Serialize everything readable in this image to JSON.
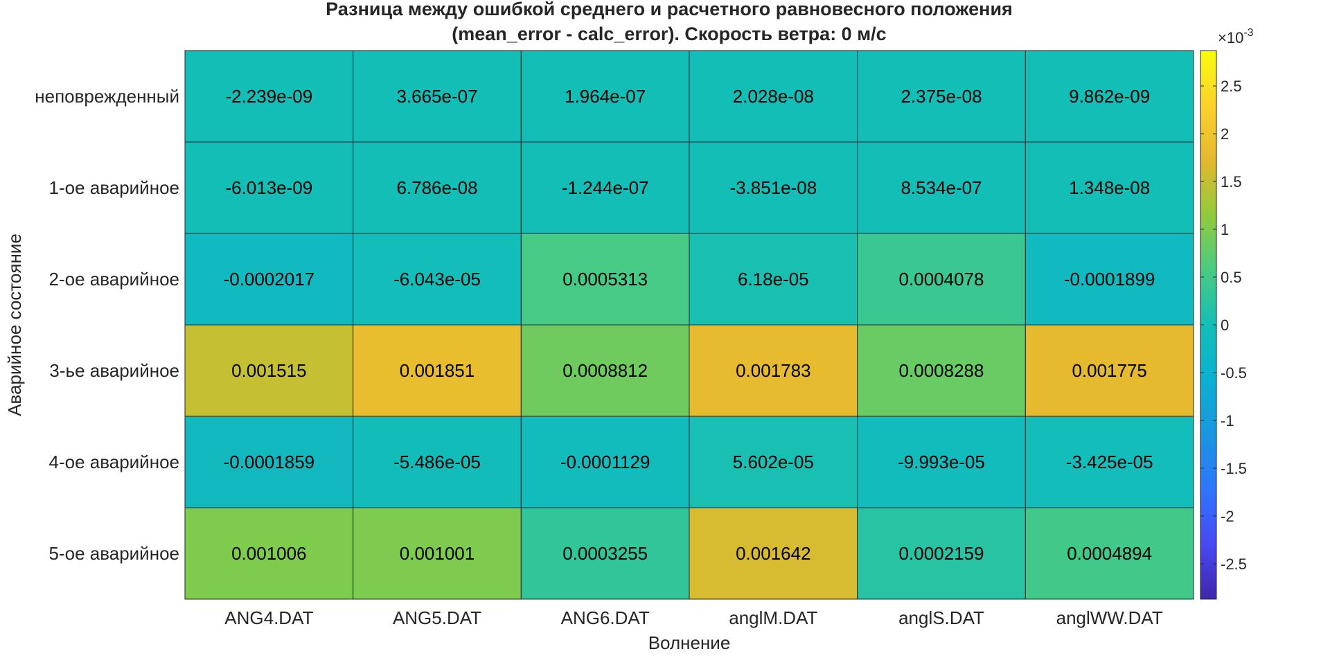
{
  "chart_data": {
    "type": "heatmap",
    "title": [
      "Разница между ошибкой среднего и расчетного равновесного положения",
      "(mean_error - calc_error). Скорость ветра: 0 м/с"
    ],
    "xlabel": "Волнение",
    "ylabel": "Аварийное состояние",
    "x_categories": [
      "ANG4.DAT",
      "ANG5.DAT",
      "ANG6.DAT",
      "anglM.DAT",
      "anglS.DAT",
      "anglWW.DAT"
    ],
    "y_categories": [
      "неповрежденный",
      "1-ое аварийное",
      "2-ое аварийное",
      "3-ье аварийное",
      "4-ое аварийное",
      "5-ое аварийное"
    ],
    "values": [
      [
        -2.239e-09,
        3.665e-07,
        1.964e-07,
        2.028e-08,
        2.375e-08,
        9.862e-09
      ],
      [
        -6.013e-09,
        6.786e-08,
        -1.244e-07,
        -3.851e-08,
        8.534e-07,
        1.348e-08
      ],
      [
        -0.0002017,
        -6.043e-05,
        0.0005313,
        6.18e-05,
        0.0004078,
        -0.0001899
      ],
      [
        0.001515,
        0.001851,
        0.0008812,
        0.001783,
        0.0008288,
        0.001775
      ],
      [
        -0.0001859,
        -5.486e-05,
        -0.0001129,
        5.602e-05,
        -9.993e-05,
        -3.425e-05
      ],
      [
        0.001006,
        0.001001,
        0.0003255,
        0.001642,
        0.0002159,
        0.0004894
      ]
    ],
    "cell_labels": [
      [
        "-2.239e-09",
        "3.665e-07",
        "1.964e-07",
        "2.028e-08",
        "2.375e-08",
        "9.862e-09"
      ],
      [
        "-6.013e-09",
        "6.786e-08",
        "-1.244e-07",
        "-3.851e-08",
        "8.534e-07",
        "1.348e-08"
      ],
      [
        "-0.0002017",
        "-6.043e-05",
        "0.0005313",
        "6.18e-05",
        "0.0004078",
        "-0.0001899"
      ],
      [
        "0.001515",
        "0.001851",
        "0.0008812",
        "0.001783",
        "0.0008288",
        "0.001775"
      ],
      [
        "-0.0001859",
        "-5.486e-05",
        "-0.0001129",
        "5.602e-05",
        "-9.993e-05",
        "-3.425e-05"
      ],
      [
        "0.001006",
        "0.001001",
        "0.0003255",
        "0.001642",
        "0.0002159",
        "0.0004894"
      ]
    ],
    "colormap": "parula",
    "color_range": [
      -0.00287,
      0.00287
    ],
    "colorbar": {
      "exponent_label": "×10",
      "exponent": "-3",
      "ticks": [
        -2.5,
        -2,
        -1.5,
        -1,
        -0.5,
        0,
        0.5,
        1,
        1.5,
        2,
        2.5
      ],
      "tick_labels": [
        "-2.5",
        "-2",
        "-1.5",
        "-1",
        "-0.5",
        "0",
        "0.5",
        "1",
        "1.5",
        "2",
        "2.5"
      ]
    }
  }
}
